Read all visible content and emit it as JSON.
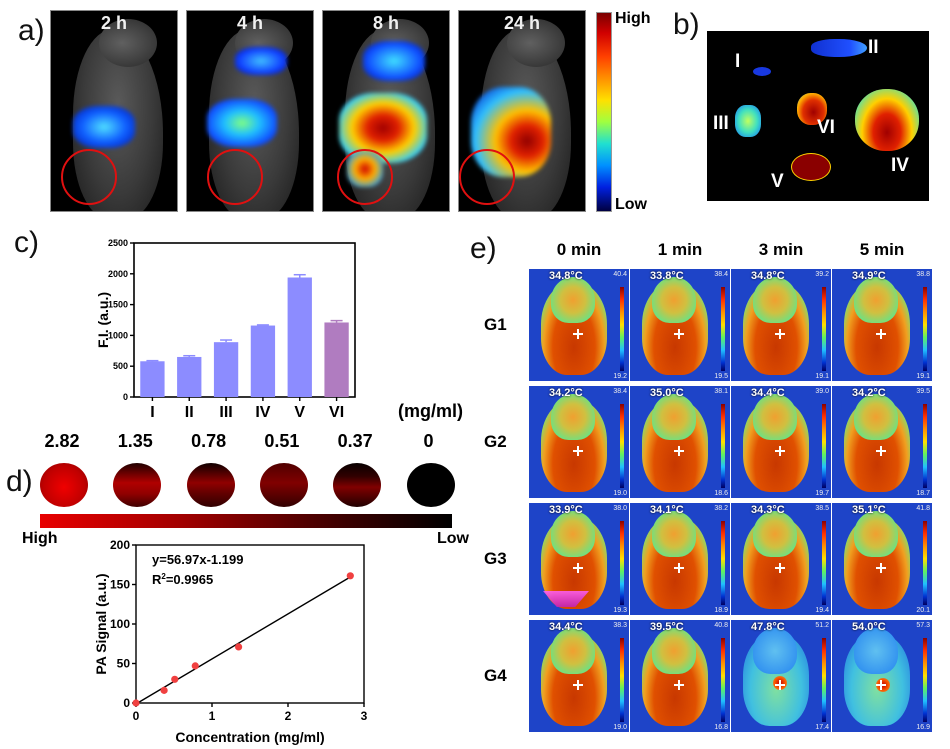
{
  "panel_a": {
    "letter": "a)",
    "timepoints": [
      "2 h",
      "4 h",
      "8 h",
      "24 h"
    ],
    "colorbar": {
      "high": "High",
      "low": "Low"
    }
  },
  "panel_b": {
    "letter": "b)",
    "organ_labels": [
      "I",
      "II",
      "III",
      "IV",
      "V",
      "VI"
    ]
  },
  "panel_c": {
    "letter": "c)"
  },
  "panel_d": {
    "letter": "d)",
    "unit_label": "(mg/ml)",
    "concentrations": [
      "2.82",
      "1.35",
      "0.78",
      "0.51",
      "0.37",
      "0"
    ],
    "colorbar": {
      "high": "High",
      "low": "Low"
    },
    "equation": "y=56.97x-1.199",
    "r2_prefix": "R",
    "r2_sup": "2",
    "r2_value": "=0.9965"
  },
  "panel_e": {
    "letter": "e)",
    "columns": [
      "0 min",
      "1 min",
      "3 min",
      "5 min"
    ],
    "rows": [
      {
        "group": "G1",
        "temps": [
          "34.8°C",
          "33.8°C",
          "34.8°C",
          "34.9°C"
        ],
        "scale_max": [
          "40.4",
          "38.4",
          "39.2",
          "38.8"
        ],
        "scale_min": [
          "19.2",
          "19.5",
          "19.1",
          "19.1"
        ]
      },
      {
        "group": "G2",
        "temps": [
          "34.2°C",
          "35.0°C",
          "34.4°C",
          "34.2°C"
        ],
        "scale_max": [
          "38.4",
          "38.1",
          "39.0",
          "39.5"
        ],
        "scale_min": [
          "19.0",
          "18.6",
          "19.7",
          "18.7"
        ]
      },
      {
        "group": "G3",
        "temps": [
          "33.9°C",
          "34.1°C",
          "34.3°C",
          "35.1°C"
        ],
        "scale_max": [
          "38.0",
          "38.2",
          "38.5",
          "41.8"
        ],
        "scale_min": [
          "19.3",
          "18.9",
          "19.4",
          "20.1"
        ]
      },
      {
        "group": "G4",
        "temps": [
          "34.4°C",
          "39.5°C",
          "47.8°C",
          "54.0°C"
        ],
        "scale_max": [
          "38.3",
          "40.8",
          "51.2",
          "57.3"
        ],
        "scale_min": [
          "19.0",
          "16.8",
          "17.4",
          "16.9"
        ]
      }
    ]
  },
  "chart_data": [
    {
      "type": "bar",
      "title": "",
      "categories": [
        "I",
        "II",
        "III",
        "IV",
        "V",
        "VI"
      ],
      "values": [
        580,
        650,
        890,
        1160,
        1940,
        1210
      ],
      "error_upper": [
        590,
        670,
        925,
        1170,
        1985,
        1240
      ],
      "colors": [
        "#8c8cff",
        "#8c8cff",
        "#8c8cff",
        "#8c8cff",
        "#8c8cff",
        "#b07cc0"
      ],
      "xlabel": "",
      "ylabel": "F.I. (a.u.)",
      "ylim": [
        0,
        2500
      ],
      "yticks": [
        0,
        500,
        1000,
        1500,
        2000,
        2500
      ],
      "grid": false
    },
    {
      "type": "scatter",
      "title": "",
      "x": [
        0,
        0.37,
        0.51,
        0.78,
        1.35,
        2.82
      ],
      "y": [
        0,
        16,
        30,
        47,
        71,
        161
      ],
      "fit": {
        "slope": 56.97,
        "intercept": -1.199,
        "x_range": [
          0,
          2.82
        ]
      },
      "point_color": "#f04040",
      "xlabel": "Concentration (mg/ml)",
      "ylabel": "PA Signal (a.u.)",
      "xlim": [
        0,
        3
      ],
      "ylim": [
        0,
        200
      ],
      "xticks": [
        0,
        1,
        2,
        3
      ],
      "yticks": [
        0,
        50,
        100,
        150,
        200
      ],
      "grid": false
    }
  ]
}
